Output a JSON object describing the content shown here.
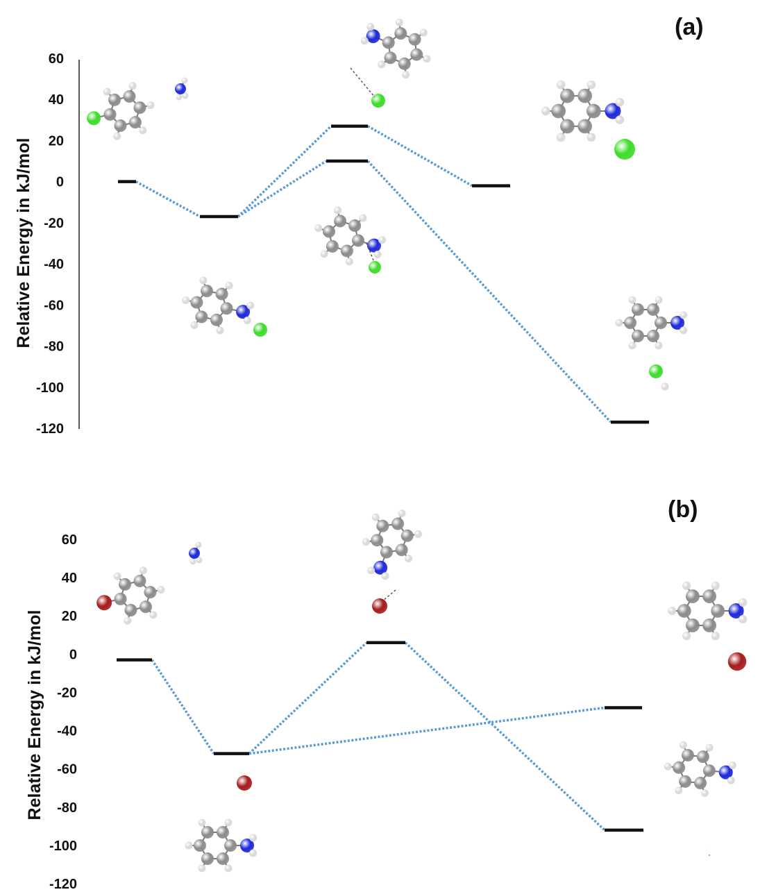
{
  "chart_data": [
    {
      "panel_label": "(a)",
      "ylabel": "Relative Energy in kJ/mol",
      "yticks": [
        "60",
        "40",
        "20",
        "0",
        "-20",
        "-40",
        "-60",
        "-80",
        "-100",
        "-120"
      ],
      "ylim": [
        -120,
        60
      ],
      "levels": [
        {
          "id": "a1",
          "energy": 0
        },
        {
          "id": "a2",
          "energy": -17
        },
        {
          "id": "a3",
          "energy": 27
        },
        {
          "id": "a4",
          "energy": 10
        },
        {
          "id": "a5",
          "energy": -2
        },
        {
          "id": "a6",
          "energy": -117
        }
      ],
      "connections": [
        [
          "a1",
          "a2"
        ],
        [
          "a2",
          "a3"
        ],
        [
          "a2",
          "a4"
        ],
        [
          "a3",
          "a5"
        ],
        [
          "a4",
          "a6"
        ]
      ]
    },
    {
      "panel_label": "(b)",
      "ylabel": "Relative Energy in kJ/mol",
      "yticks": [
        "60",
        "40",
        "20",
        "0",
        "-20",
        "-40",
        "-60",
        "-80",
        "-100",
        "-120"
      ],
      "ylim": [
        -120,
        60
      ],
      "levels": [
        {
          "id": "b1",
          "energy": -3
        },
        {
          "id": "b2",
          "energy": -52
        },
        {
          "id": "b3",
          "energy": 6
        },
        {
          "id": "b4",
          "energy": -28
        },
        {
          "id": "b5",
          "energy": -92
        }
      ],
      "connections": [
        [
          "b1",
          "b2"
        ],
        [
          "b2",
          "b3"
        ],
        [
          "b2",
          "b4"
        ],
        [
          "b3",
          "b5"
        ]
      ]
    }
  ],
  "colors": {
    "level": "#111111",
    "connector": "#5b9bd5",
    "carbon": "#8c8c8c",
    "hydrogen": "#d9d9d9",
    "nitrogen": "#1f2ad8",
    "chlorine": "#3ddc2a",
    "bromine": "#a51c1c"
  }
}
